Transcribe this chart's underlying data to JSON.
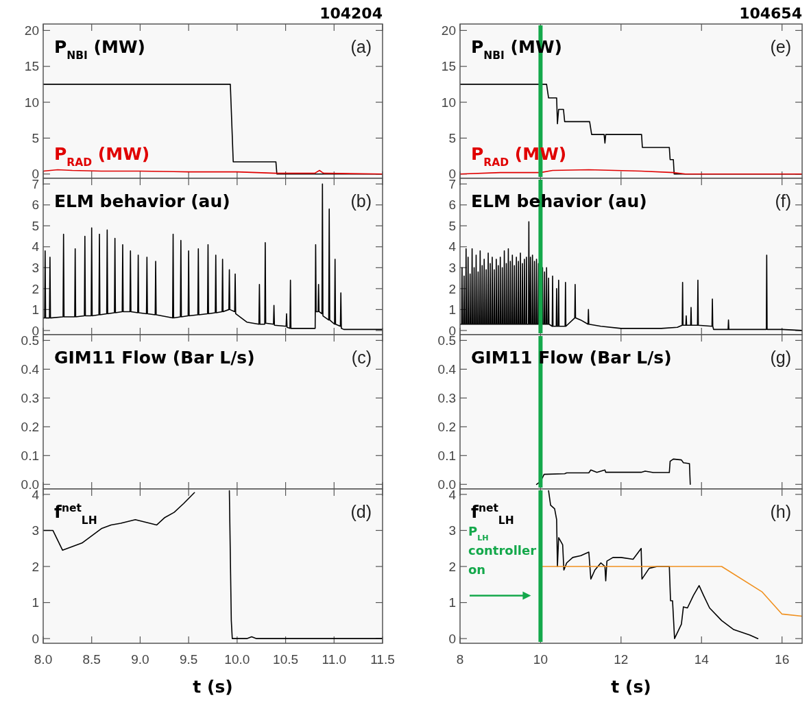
{
  "chart_data": [
    {
      "type": "line",
      "title": "104204",
      "xlim": [
        8,
        11.5
      ],
      "xticks": [
        8,
        8.5,
        9,
        9.5,
        10,
        10.5,
        11,
        11.5
      ],
      "ylim": [
        -0.6,
        20.9
      ],
      "yticks": [
        0,
        5,
        10,
        15,
        20
      ],
      "tick_labels": "y",
      "annotations": [
        "(a)"
      ],
      "series": [
        {
          "name": "P$_{NBI}$ (MW)",
          "color": "#000000",
          "x": [
            8,
            9.93,
            9.96,
            10.4,
            10.41,
            11.5
          ],
          "values": [
            12.5,
            12.5,
            1.7,
            1.7,
            0,
            0
          ]
        },
        {
          "name": "P$_{RAD}$ (MW)",
          "color": "#e00000",
          "x": [
            8,
            8.15,
            8.3,
            8.6,
            9.0,
            9.5,
            10.0,
            10.4,
            10.8,
            10.85,
            10.88,
            10.9,
            11.5
          ],
          "values": [
            0.4,
            0.6,
            0.5,
            0.4,
            0.4,
            0.3,
            0.3,
            0.1,
            0.1,
            0.5,
            0.2,
            0.1,
            0.0
          ]
        }
      ]
    },
    {
      "type": "line",
      "xlim": [
        8,
        11.5
      ],
      "xticks": [
        8,
        8.5,
        9,
        9.5,
        10,
        10.5,
        11,
        11.5
      ],
      "ylim": [
        -0.2,
        7.27
      ],
      "yticks": [
        0,
        1,
        2,
        3,
        4,
        5,
        6,
        7
      ],
      "tick_labels": "y",
      "annotations": [
        "(b)"
      ],
      "series": [
        {
          "name": "ELM behavior (au)",
          "color": "#000000",
          "x": [
            8.0,
            8.015,
            8.02,
            8.025,
            8.065,
            8.07,
            8.075,
            8.205,
            8.21,
            8.215,
            8.325,
            8.33,
            8.335,
            8.425,
            8.43,
            8.435,
            8.495,
            8.5,
            8.505,
            8.575,
            8.58,
            8.585,
            8.655,
            8.66,
            8.665,
            8.735,
            8.74,
            8.745,
            8.815,
            8.82,
            8.825,
            8.895,
            8.9,
            8.905,
            8.975,
            8.98,
            8.985,
            9.065,
            9.07,
            9.075,
            9.155,
            9.16,
            9.165,
            9.335,
            9.34,
            9.345,
            9.415,
            9.42,
            9.425,
            9.495,
            9.5,
            9.505,
            9.595,
            9.6,
            9.605,
            9.695,
            9.7,
            9.705,
            9.775,
            9.78,
            9.785,
            9.845,
            9.85,
            9.855,
            9.915,
            9.92,
            9.925,
            9.975,
            9.98,
            9.985,
            10.1,
            10.225,
            10.23,
            10.235,
            10.285,
            10.29,
            10.295,
            10.375,
            10.38,
            10.385,
            10.505,
            10.51,
            10.515,
            10.545,
            10.55,
            10.555,
            10.8,
            10.805,
            10.81,
            10.815,
            10.835,
            10.84,
            10.845,
            10.875,
            10.88,
            10.885,
            10.945,
            10.95,
            10.955,
            11.005,
            11.01,
            11.015,
            11.065,
            11.07,
            11.075,
            11.1,
            11.5
          ],
          "values": [
            0.6,
            0.6,
            3.8,
            0.6,
            0.6,
            3.5,
            0.6,
            0.65,
            4.6,
            0.65,
            0.65,
            3.9,
            0.65,
            0.7,
            4.5,
            0.7,
            0.7,
            4.9,
            0.7,
            0.75,
            4.6,
            0.75,
            0.8,
            4.8,
            0.8,
            0.85,
            4.4,
            0.85,
            0.9,
            4.1,
            0.9,
            0.9,
            3.8,
            0.9,
            0.85,
            3.6,
            0.85,
            0.8,
            3.5,
            0.8,
            0.75,
            3.3,
            0.75,
            0.6,
            4.6,
            0.6,
            0.65,
            4.3,
            0.65,
            0.7,
            3.8,
            0.7,
            0.75,
            3.9,
            0.75,
            0.8,
            4.1,
            0.8,
            0.85,
            3.6,
            0.85,
            0.9,
            3.4,
            0.9,
            1.0,
            2.9,
            1.0,
            0.9,
            2.7,
            0.8,
            0.4,
            0.3,
            2.2,
            0.3,
            0.3,
            4.2,
            0.35,
            0.3,
            1.2,
            0.25,
            0.2,
            0.8,
            0.15,
            0.1,
            2.4,
            0.1,
            0.1,
            0.1,
            4.1,
            0.9,
            0.9,
            2.2,
            0.9,
            0.8,
            7.0,
            0.7,
            0.5,
            5.8,
            0.5,
            0.3,
            3.4,
            0.3,
            0.2,
            1.8,
            0.1,
            0.05,
            0.05
          ]
        }
      ]
    },
    {
      "type": "line",
      "xlim": [
        8,
        11.5
      ],
      "xticks": [
        8,
        8.5,
        9,
        9.5,
        10,
        10.5,
        11,
        11.5
      ],
      "ylim": [
        -0.016,
        0.52
      ],
      "yticks": [
        {
          "value": 0,
          "label": "0.0"
        },
        0.1,
        0.2,
        0.3,
        0.4,
        0.5
      ],
      "tick_labels": "y",
      "annotations": [
        "(c)",
        "GIM11 Flow (Bar L/s)"
      ]
    },
    {
      "type": "line",
      "xlabel": "t (s)",
      "xlim": [
        8,
        11.5
      ],
      "xticks": [
        {
          "value": 8,
          "label": "8.0"
        },
        8.5,
        {
          "value": 9,
          "label": "9.0"
        },
        9.5,
        {
          "value": 10,
          "label": "10.0"
        },
        10.5,
        {
          "value": 11,
          "label": "11.0"
        },
        11.5
      ],
      "ylim": [
        -0.13,
        4.15
      ],
      "yticks": [
        0,
        1,
        2,
        3,
        4
      ],
      "annotations": [
        "(d)"
      ],
      "series": [
        {
          "name": "f$^{net}$$_{LH}$",
          "color": "#000000",
          "x": [
            8.0,
            8.1,
            8.2,
            8.3,
            8.4,
            8.5,
            8.6,
            8.7,
            8.8,
            8.95,
            9.1,
            9.17,
            9.25,
            9.35,
            9.45,
            9.56,
            9.57,
            9.92,
            9.94,
            9.95,
            10.1,
            10.15,
            10.2,
            11.5
          ],
          "values": [
            3.0,
            3.0,
            2.45,
            2.55,
            2.65,
            2.85,
            3.05,
            3.15,
            3.2,
            3.3,
            3.2,
            3.15,
            3.35,
            3.5,
            3.75,
            4.05,
            null,
            4.1,
            0.5,
            0,
            0,
            0.05,
            0,
            0
          ]
        }
      ]
    },
    {
      "type": "line",
      "title": "104654",
      "xlim": [
        8,
        16.5
      ],
      "xticks": [
        8,
        10,
        12,
        14,
        16
      ],
      "ylim": [
        -0.6,
        20.9
      ],
      "yticks": [
        0,
        5,
        10,
        15,
        20
      ],
      "tick_labels": "y",
      "annotations": [
        "(e)"
      ],
      "ref_lines": [
        {
          "axis": "x",
          "value": 10,
          "color": "#14a84b"
        }
      ],
      "series": [
        {
          "name": "P$_{NBI}$ (MW)",
          "color": "#000000",
          "x": [
            8,
            10.15,
            10.2,
            10.4,
            10.42,
            10.45,
            10.57,
            10.6,
            11.22,
            11.27,
            11.58,
            11.6,
            11.62,
            12.51,
            12.53,
            13.2,
            13.22,
            13.3,
            13.32,
            16.5
          ],
          "values": [
            12.5,
            12.5,
            10.6,
            10.6,
            7.0,
            9.0,
            9.0,
            7.3,
            7.3,
            5.5,
            5.5,
            4.3,
            5.5,
            5.5,
            3.7,
            3.7,
            2.0,
            2.0,
            0,
            0
          ]
        },
        {
          "name": "P$_{RAD}$ (MW)",
          "color": "#e00000",
          "x": [
            8,
            9,
            10,
            10.3,
            11.2,
            12.5,
            13.3,
            13.6,
            16.5
          ],
          "values": [
            0.0,
            0.2,
            0.2,
            0.5,
            0.6,
            0.4,
            0.2,
            0.0,
            0.0
          ]
        }
      ]
    },
    {
      "type": "line",
      "xlim": [
        8,
        16.5
      ],
      "xticks": [
        8,
        10,
        12,
        14,
        16
      ],
      "ylim": [
        -0.2,
        7.27
      ],
      "yticks": [
        0,
        1,
        2,
        3,
        4,
        5,
        6,
        7
      ],
      "tick_labels": "y",
      "annotations": [
        "(f)"
      ],
      "ref_lines": [
        {
          "axis": "x",
          "value": 10,
          "color": "#14a84b"
        }
      ],
      "series": [
        {
          "name": "ELM behavior (au)",
          "color": "#000000",
          "x": [
            8.0,
            8.04,
            8.05,
            8.06,
            8.09,
            8.1,
            8.11,
            8.14,
            8.15,
            8.16,
            8.19,
            8.2,
            8.21,
            8.24,
            8.25,
            8.26,
            8.29,
            8.3,
            8.31,
            8.34,
            8.35,
            8.36,
            8.39,
            8.4,
            8.41,
            8.44,
            8.45,
            8.46,
            8.49,
            8.5,
            8.51,
            8.54,
            8.55,
            8.56,
            8.59,
            8.6,
            8.61,
            8.64,
            8.65,
            8.66,
            8.69,
            8.7,
            8.71,
            8.74,
            8.75,
            8.76,
            8.79,
            8.8,
            8.81,
            8.84,
            8.85,
            8.86,
            8.89,
            8.9,
            8.91,
            8.94,
            8.95,
            8.96,
            8.99,
            9.0,
            9.01,
            9.04,
            9.05,
            9.06,
            9.09,
            9.1,
            9.11,
            9.14,
            9.15,
            9.16,
            9.19,
            9.2,
            9.21,
            9.24,
            9.25,
            9.26,
            9.29,
            9.3,
            9.31,
            9.34,
            9.35,
            9.36,
            9.39,
            9.4,
            9.41,
            9.44,
            9.45,
            9.46,
            9.49,
            9.5,
            9.51,
            9.54,
            9.55,
            9.56,
            9.59,
            9.6,
            9.61,
            9.64,
            9.65,
            9.66,
            9.7,
            9.71,
            9.72,
            9.74,
            9.75,
            9.76,
            9.79,
            9.8,
            9.81,
            9.84,
            9.85,
            9.86,
            9.89,
            9.9,
            9.91,
            9.94,
            9.95,
            9.96,
            9.99,
            10.0,
            10.01,
            10.04,
            10.05,
            10.06,
            10.09,
            10.1,
            10.11,
            10.14,
            10.15,
            10.16,
            10.19,
            10.2,
            10.21,
            10.29,
            10.3,
            10.31,
            10.39,
            10.4,
            10.41,
            10.44,
            10.45,
            10.46,
            10.61,
            10.62,
            10.63,
            10.85,
            10.86,
            10.87,
            11.0,
            11.18,
            11.19,
            11.2,
            11.5,
            12.0,
            13.0,
            13.4,
            13.52,
            13.53,
            13.54,
            13.61,
            13.62,
            13.63,
            13.73,
            13.74,
            13.75,
            13.9,
            13.91,
            13.92,
            14.26,
            14.27,
            14.28,
            14.3,
            14.66,
            14.67,
            14.68,
            15.61,
            15.62,
            15.63,
            16.0,
            16.5
          ],
          "values": [
            0.3,
            0.3,
            3.0,
            0.3,
            0.3,
            2.6,
            0.3,
            0.3,
            3.9,
            0.3,
            0.3,
            3.5,
            0.3,
            0.3,
            2.7,
            0.3,
            0.3,
            3.9,
            0.3,
            0.3,
            3.0,
            0.3,
            0.3,
            3.6,
            0.3,
            0.3,
            2.8,
            0.3,
            0.3,
            3.8,
            0.3,
            0.3,
            3.1,
            0.3,
            0.3,
            3.4,
            0.3,
            0.3,
            2.9,
            0.3,
            0.3,
            3.7,
            0.3,
            0.3,
            3.2,
            0.3,
            0.3,
            3.5,
            0.3,
            0.3,
            2.9,
            0.3,
            0.3,
            3.4,
            0.3,
            0.3,
            3.1,
            0.3,
            0.3,
            3.5,
            0.3,
            0.3,
            3.0,
            0.3,
            0.3,
            3.8,
            0.3,
            0.3,
            3.2,
            0.3,
            0.3,
            3.9,
            0.3,
            0.3,
            3.3,
            0.3,
            0.3,
            3.6,
            0.3,
            0.3,
            3.1,
            0.3,
            0.3,
            3.5,
            0.3,
            0.3,
            3.3,
            0.3,
            0.3,
            3.7,
            0.3,
            0.3,
            3.2,
            0.3,
            0.3,
            3.4,
            0.3,
            0.3,
            3.5,
            0.3,
            0.3,
            5.2,
            0.3,
            0.3,
            3.5,
            0.3,
            0.3,
            3.6,
            0.3,
            0.3,
            3.3,
            0.3,
            0.3,
            3.4,
            0.3,
            0.3,
            3.2,
            0.3,
            0.3,
            3.3,
            0.3,
            0.3,
            3.0,
            0.3,
            0.3,
            2.8,
            0.3,
            0.3,
            3.0,
            0.3,
            0.3,
            2.5,
            0.3,
            0.2,
            2.6,
            0.2,
            0.2,
            2.0,
            0.2,
            0.2,
            2.4,
            0.2,
            0.2,
            2.3,
            0.2,
            0.6,
            2.2,
            0.6,
            0.5,
            0.3,
            1.0,
            0.3,
            0.2,
            0.1,
            0.1,
            0.15,
            0.25,
            2.3,
            0.25,
            0.25,
            0.7,
            0.25,
            0.25,
            1.1,
            0.25,
            0.25,
            2.4,
            0.25,
            0.2,
            1.5,
            0.2,
            0.05,
            0.05,
            0.5,
            0.05,
            0.05,
            3.6,
            0.05,
            0.05,
            0.0
          ]
        }
      ]
    },
    {
      "type": "line",
      "xlim": [
        8,
        16.5
      ],
      "xticks": [
        8,
        10,
        12,
        14,
        16
      ],
      "ylim": [
        -0.016,
        0.52
      ],
      "yticks": [
        {
          "value": 0,
          "label": "0.0"
        },
        0.1,
        0.2,
        0.3,
        0.4,
        0.5
      ],
      "tick_labels": "y",
      "annotations": [
        "(g)"
      ],
      "ref_lines": [
        {
          "axis": "x",
          "value": 10,
          "color": "#14a84b"
        }
      ],
      "series": [
        {
          "name": "GIM11 Flow (Bar L/s)",
          "color": "#000000",
          "x": [
            9.9,
            10.0,
            10.09,
            10.6,
            10.65,
            11.2,
            11.25,
            11.4,
            11.6,
            11.62,
            12.5,
            12.6,
            12.8,
            13.2,
            13.22,
            13.3,
            13.5,
            13.55,
            13.7,
            13.72
          ],
          "values": [
            0,
            0.01,
            0.035,
            0.037,
            0.04,
            0.04,
            0.05,
            0.042,
            0.05,
            0.042,
            0.042,
            0.046,
            0.041,
            0.041,
            0.08,
            0.088,
            0.085,
            0.075,
            0.072,
            0
          ]
        }
      ]
    },
    {
      "type": "line",
      "xlabel": "t (s)",
      "xlim": [
        8,
        16.5
      ],
      "xticks": [
        8,
        10,
        12,
        14,
        16
      ],
      "ylim": [
        -0.13,
        4.15
      ],
      "yticks": [
        0,
        1,
        2,
        3,
        4
      ],
      "annotations": [
        "(h)"
      ],
      "ref_lines": [
        {
          "axis": "x",
          "value": 10,
          "color": "#14a84b",
          "label": "P$_{LH}$ controller on"
        }
      ],
      "series": [
        {
          "name": "f$^{net}$$_{LH}$",
          "color": "#000000",
          "x": [
            10.2,
            10.25,
            10.35,
            10.4,
            10.42,
            10.45,
            10.55,
            10.58,
            10.65,
            10.8,
            11.0,
            11.2,
            11.25,
            11.35,
            11.5,
            11.6,
            11.62,
            11.65,
            11.8,
            12.0,
            12.3,
            12.5,
            12.52,
            12.7,
            12.9,
            13.2,
            13.23,
            13.28,
            13.33,
            13.5,
            13.55,
            13.65,
            13.8,
            13.94,
            14.05,
            14.2,
            14.5,
            14.8,
            15.2,
            15.4
          ],
          "values": [
            4.1,
            3.7,
            3.6,
            3.3,
            2.0,
            2.8,
            2.6,
            1.9,
            2.1,
            2.25,
            2.3,
            2.4,
            1.65,
            1.9,
            2.1,
            2.0,
            1.6,
            2.15,
            2.25,
            2.25,
            2.2,
            2.5,
            1.65,
            1.95,
            2.0,
            2.0,
            1.05,
            1.05,
            0,
            0.4,
            0.88,
            0.85,
            1.2,
            1.47,
            1.2,
            0.85,
            0.5,
            0.25,
            0.1,
            0
          ]
        },
        {
          "color": "#f0901e",
          "x": [
            10,
            14.5,
            15.5,
            16,
            16.5
          ],
          "values": [
            2,
            2,
            1.3,
            0.68,
            0.62
          ]
        }
      ]
    }
  ]
}
